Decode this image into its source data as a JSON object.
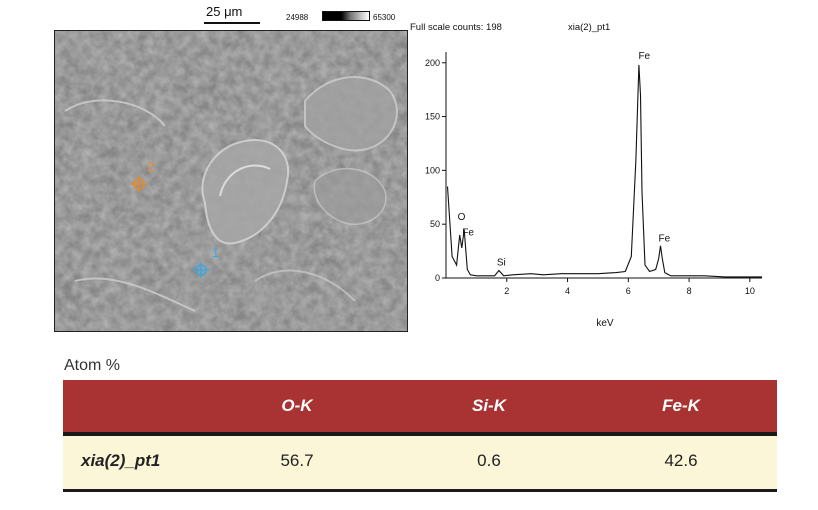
{
  "scale_bar": {
    "label": "25 μm"
  },
  "contrast_bar": {
    "min": "24988",
    "max": "65300"
  },
  "sem_markers": [
    {
      "label": "2",
      "color": "#e8892a"
    },
    {
      "label": "1",
      "color": "#3aa6e0"
    }
  ],
  "table": {
    "title": "Atom %",
    "columns": [
      "",
      "O-K",
      "Si-K",
      "Fe-K"
    ],
    "rows": [
      {
        "name": "xia(2)_pt1",
        "values": [
          "56.7",
          "0.6",
          "42.6"
        ]
      }
    ],
    "header_color": "#a93232",
    "row_color": "#fbf6d8"
  },
  "chart_data": {
    "type": "line",
    "title": "xia(2)_pt1",
    "subtitle": "Full scale counts: 198",
    "xlabel": "keV",
    "ylabel": "",
    "xlim": [
      0,
      10.4
    ],
    "ylim": [
      0,
      210
    ],
    "xticks": [
      2,
      4,
      6,
      8,
      10
    ],
    "yticks": [
      0,
      50,
      100,
      150,
      200
    ],
    "series": [
      {
        "x": [
          0.05,
          0.2,
          0.35,
          0.45,
          0.52,
          0.6,
          0.7,
          0.8,
          1.0,
          1.3,
          1.6,
          1.74,
          1.9,
          2.2,
          2.8,
          3.2,
          3.8,
          4.5,
          5.0,
          5.6,
          5.9,
          6.1,
          6.25,
          6.35,
          6.4,
          6.45,
          6.55,
          6.7,
          6.9,
          7.0,
          7.06,
          7.12,
          7.2,
          7.4,
          7.8,
          8.5,
          9.2,
          10.0,
          10.4
        ],
        "y": [
          85,
          20,
          12,
          40,
          28,
          45,
          8,
          3,
          2,
          2,
          2,
          7,
          2,
          3,
          4,
          3,
          4,
          4,
          4,
          5,
          6,
          20,
          110,
          198,
          170,
          80,
          12,
          6,
          8,
          18,
          30,
          18,
          5,
          2,
          2,
          2,
          1,
          1,
          1
        ]
      }
    ],
    "peak_labels": [
      {
        "text": "O",
        "x": 0.45,
        "y": 50
      },
      {
        "text": "Fe",
        "x": 0.6,
        "y": 36
      },
      {
        "text": "Si",
        "x": 1.74,
        "y": 8
      },
      {
        "text": "Fe",
        "x": 6.4,
        "y": 200
      },
      {
        "text": "Fe",
        "x": 7.06,
        "y": 30
      }
    ]
  }
}
